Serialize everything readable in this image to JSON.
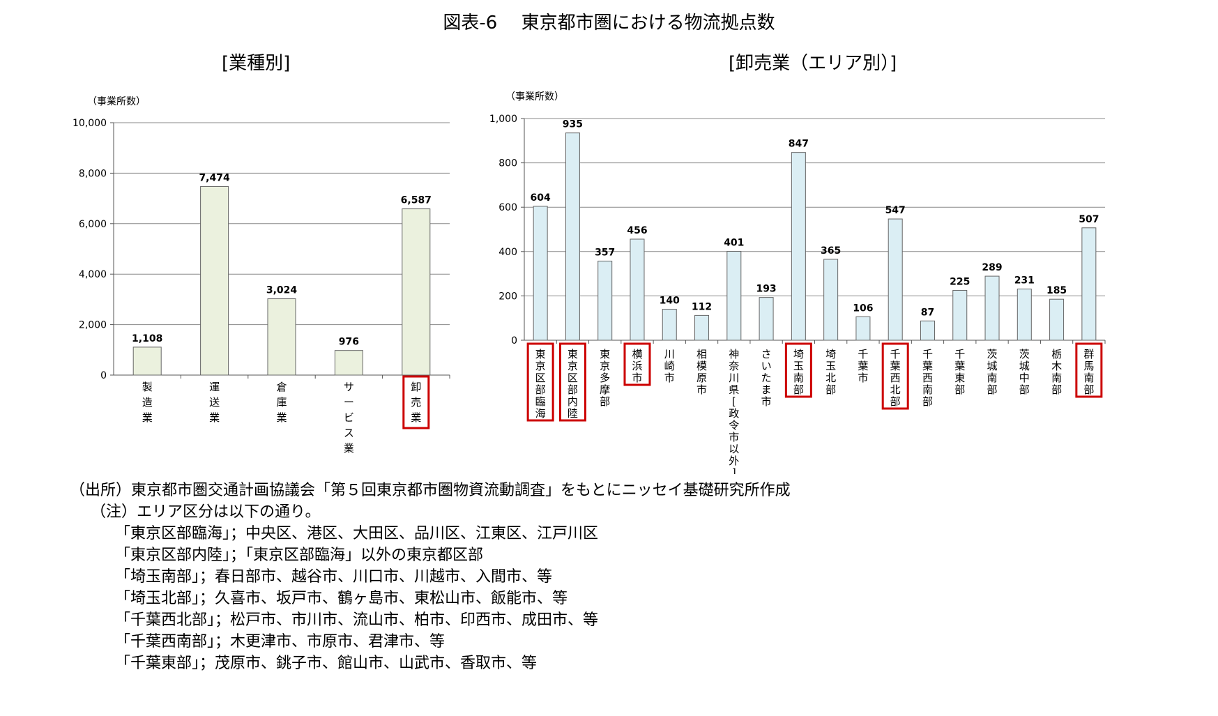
{
  "figure_title": "図表-6　 東京都市圏における物流拠点数",
  "chart_data": [
    {
      "type": "bar",
      "title": "[業種別]",
      "ylabel": "（事業所数）",
      "ylim": [
        0,
        10000
      ],
      "yticks": [
        "0",
        "2,000",
        "4,000",
        "6,000",
        "8,000",
        "10,000"
      ],
      "ytick_values": [
        0,
        2000,
        4000,
        6000,
        8000,
        10000
      ],
      "categories": [
        "製造業",
        "運送業",
        "倉庫業",
        "サービス業",
        "卸売業"
      ],
      "values": [
        1108,
        7474,
        3024,
        976,
        6587
      ],
      "value_labels": [
        "1,108",
        "7,474",
        "3,024",
        "976",
        "6,587"
      ],
      "highlighted": [
        false,
        false,
        false,
        false,
        true
      ],
      "grid": true,
      "bar_color": "#ebf1de"
    },
    {
      "type": "bar",
      "title": "[卸売業（エリア別）]",
      "ylabel": "（事業所数）",
      "ylim": [
        0,
        1000
      ],
      "yticks": [
        "0",
        "200",
        "400",
        "600",
        "800",
        "1,000"
      ],
      "ytick_values": [
        0,
        200,
        400,
        600,
        800,
        1000
      ],
      "categories": [
        "東京区部臨海",
        "東京区部内陸",
        "東京多摩部",
        "横浜市",
        "川崎市",
        "相模原市",
        "神奈川県[政令市以外]",
        "さいたま市",
        "埼玉南部",
        "埼玉北部",
        "千葉市",
        "千葉西北部",
        "千葉西南部",
        "千葉東部",
        "茨城南部",
        "茨城中部",
        "栃木南部",
        "群馬南部"
      ],
      "values": [
        604,
        935,
        357,
        456,
        140,
        112,
        401,
        193,
        847,
        365,
        106,
        547,
        87,
        225,
        289,
        231,
        185,
        507
      ],
      "value_labels": [
        "604",
        "935",
        "357",
        "456",
        "140",
        "112",
        "401",
        "193",
        "847",
        "365",
        "106",
        "547",
        "87",
        "225",
        "289",
        "231",
        "185",
        "507"
      ],
      "highlighted": [
        true,
        true,
        false,
        true,
        false,
        false,
        false,
        false,
        true,
        false,
        false,
        true,
        false,
        false,
        false,
        false,
        false,
        true
      ],
      "grid": true,
      "bar_color": "#dbeef4"
    }
  ],
  "colors": {
    "highlight_box": "#cc0000",
    "grid": "#888888",
    "axis": "#555555"
  },
  "notes": {
    "source": "（出所）東京都市圏交通計画協議会「第５回東京都市圏物資流動調査」をもとにニッセイ基礎研究所作成",
    "note_header": "（注）エリア区分は以下の通り。",
    "items": [
      "「東京区部臨海」；中央区、港区、大田区、品川区、江東区、江戸川区",
      "「東京区部内陸」；「東京区部臨海」以外の東京都区部",
      "「埼玉南部」；春日部市、越谷市、川口市、川越市、入間市、等",
      "「埼玉北部」；久喜市、坂戸市、鶴ヶ島市、東松山市、飯能市、等",
      "「千葉西北部」；松戸市、市川市、流山市、柏市、印西市、成田市、等",
      "「千葉西南部」；木更津市、市原市、君津市、等",
      "「千葉東部」；茂原市、銚子市、館山市、山武市、香取市、等"
    ]
  }
}
